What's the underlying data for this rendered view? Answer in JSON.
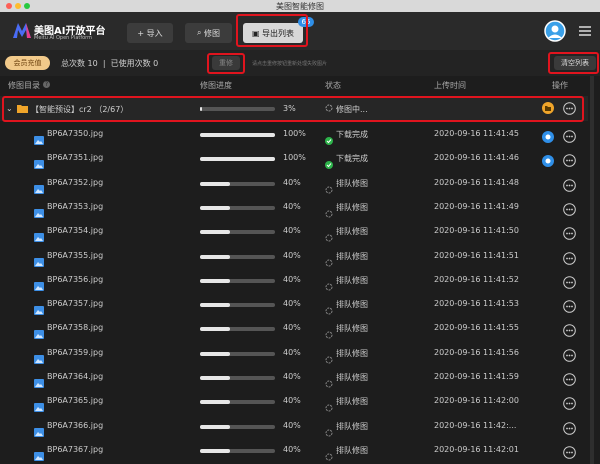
{
  "window_title": "美图智能修图",
  "header": {
    "brand": "美图AI开放平台",
    "brand_sub": "Meitu AI Open Platform",
    "import_button": "导入",
    "retouch_button": "修图",
    "export_button": "导出列表",
    "export_badge": 65
  },
  "toolbar": {
    "recharge": "会员充值",
    "total_label": "总次数",
    "total": 10,
    "used_label": "已使用次数",
    "used": 0,
    "redo_button": "重修",
    "redo_hint": "请点击重修按钮重新处理失败图片",
    "clear_button": "清空列表"
  },
  "columns": [
    "修图目录",
    "修图进度",
    "状态",
    "上传时间",
    "操作"
  ],
  "group": {
    "name": "【智能预设】cr2 （2/67）",
    "progress": 3,
    "progress_label": "3%",
    "status": "修图中..."
  },
  "files": [
    {
      "name": "BP6A7350.jpg",
      "progress": 100,
      "progress_label": "100%",
      "status": "下载完成",
      "time": "2020-09-16 11:41:45"
    },
    {
      "name": "BP6A7351.jpg",
      "progress": 100,
      "progress_label": "100%",
      "status": "下载完成",
      "time": "2020-09-16 11:41:46"
    },
    {
      "name": "BP6A7352.jpg",
      "progress": 40,
      "progress_label": "40%",
      "status": "排队修图",
      "time": "2020-09-16 11:41:48"
    },
    {
      "name": "BP6A7353.jpg",
      "progress": 40,
      "progress_label": "40%",
      "status": "排队修图",
      "time": "2020-09-16 11:41:49"
    },
    {
      "name": "BP6A7354.jpg",
      "progress": 40,
      "progress_label": "40%",
      "status": "排队修图",
      "time": "2020-09-16 11:41:50"
    },
    {
      "name": "BP6A7355.jpg",
      "progress": 40,
      "progress_label": "40%",
      "status": "排队修图",
      "time": "2020-09-16 11:41:51"
    },
    {
      "name": "BP6A7356.jpg",
      "progress": 40,
      "progress_label": "40%",
      "status": "排队修图",
      "time": "2020-09-16 11:41:52"
    },
    {
      "name": "BP6A7357.jpg",
      "progress": 40,
      "progress_label": "40%",
      "status": "排队修图",
      "time": "2020-09-16 11:41:53"
    },
    {
      "name": "BP6A7358.jpg",
      "progress": 40,
      "progress_label": "40%",
      "status": "排队修图",
      "time": "2020-09-16 11:41:55"
    },
    {
      "name": "BP6A7359.jpg",
      "progress": 40,
      "progress_label": "40%",
      "status": "排队修图",
      "time": "2020-09-16 11:41:56"
    },
    {
      "name": "BP6A7364.jpg",
      "progress": 40,
      "progress_label": "40%",
      "status": "排队修图",
      "time": "2020-09-16 11:41:59"
    },
    {
      "name": "BP6A7365.jpg",
      "progress": 40,
      "progress_label": "40%",
      "status": "排队修图",
      "time": "2020-09-16 11:42:00"
    },
    {
      "name": "BP6A7366.jpg",
      "progress": 40,
      "progress_label": "40%",
      "status": "排队修图",
      "time": "2020-09-16 11:42:..."
    },
    {
      "name": "BP6A7367.jpg",
      "progress": 40,
      "progress_label": "40%",
      "status": "排队修图",
      "time": "2020-09-16 11:42:01"
    }
  ]
}
